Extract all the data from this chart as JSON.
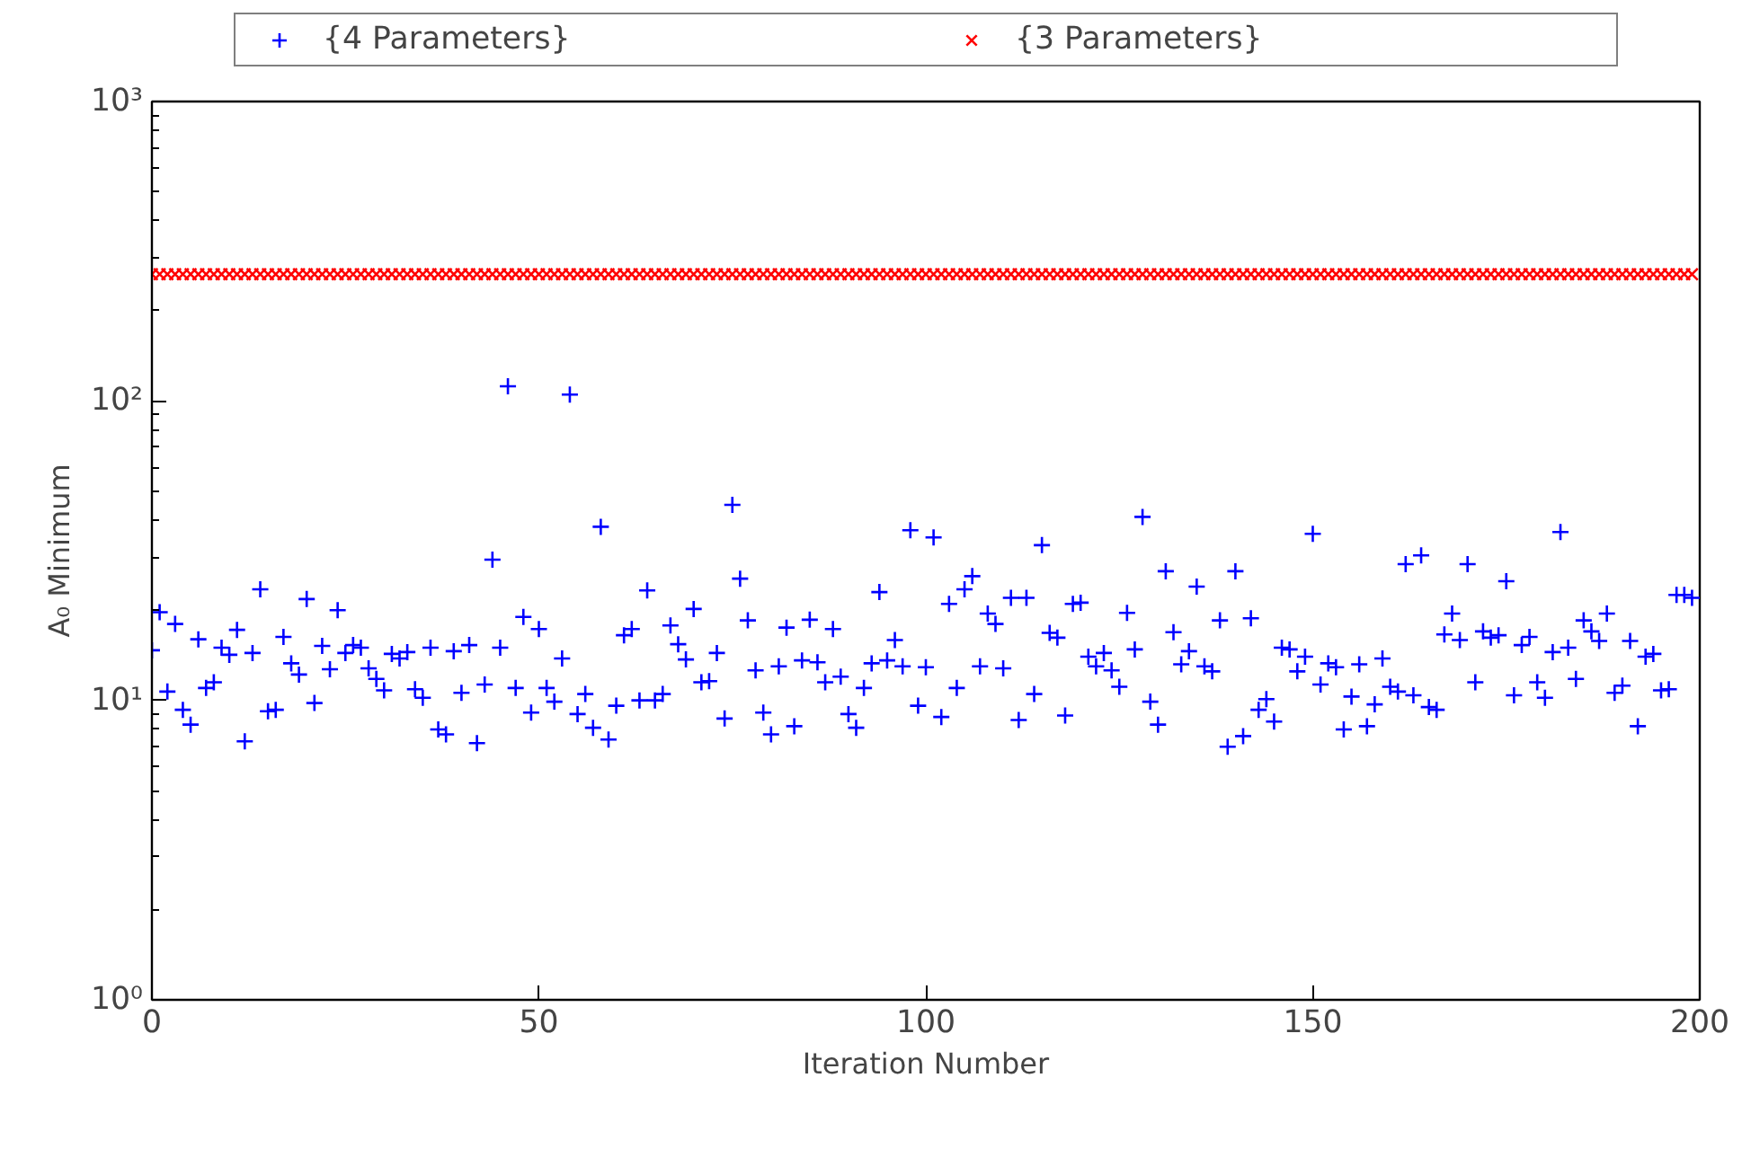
{
  "chart_data": {
    "type": "scatter",
    "xlabel": "Iteration Number",
    "ylabel": "A₀ Minimum",
    "x": [
      0,
      1,
      2,
      3,
      4,
      5,
      6,
      7,
      8,
      9,
      10,
      11,
      12,
      13,
      14,
      15,
      16,
      17,
      18,
      19,
      20,
      21,
      22,
      23,
      24,
      25,
      26,
      27,
      28,
      29,
      30,
      31,
      32,
      33,
      34,
      35,
      36,
      37,
      38,
      39,
      40,
      41,
      42,
      43,
      44,
      45,
      46,
      47,
      48,
      49,
      50,
      51,
      52,
      53,
      54,
      55,
      56,
      57,
      58,
      59,
      60,
      61,
      62,
      63,
      64,
      65,
      66,
      67,
      68,
      69,
      70,
      71,
      72,
      73,
      74,
      75,
      76,
      77,
      78,
      79,
      80,
      81,
      82,
      83,
      84,
      85,
      86,
      87,
      88,
      89,
      90,
      91,
      92,
      93,
      94,
      95,
      96,
      97,
      98,
      99,
      100,
      101,
      102,
      103,
      104,
      105,
      106,
      107,
      108,
      109,
      110,
      111,
      112,
      113,
      114,
      115,
      116,
      117,
      118,
      119,
      120,
      121,
      122,
      123,
      124,
      125,
      126,
      127,
      128,
      129,
      130,
      131,
      132,
      133,
      134,
      135,
      136,
      137,
      138,
      139,
      140,
      141,
      142,
      143,
      144,
      145,
      146,
      147,
      148,
      149,
      150,
      151,
      152,
      153,
      154,
      155,
      156,
      157,
      158,
      159,
      160,
      161,
      162,
      163,
      164,
      165,
      166,
      167,
      168,
      169,
      170,
      171,
      172,
      173,
      174,
      175,
      176,
      177,
      178,
      179,
      180,
      181,
      182,
      183,
      184,
      185,
      186,
      187,
      188,
      189,
      190,
      191,
      192,
      193,
      194,
      195,
      196,
      197,
      198,
      199
    ],
    "series": [
      {
        "name": "{4 Parameters}",
        "color": "#0000ff",
        "marker": "cross",
        "values": [
          14.7,
          19.7,
          10.7,
          18,
          9.3,
          8.3,
          16,
          11,
          11.5,
          15,
          14.2,
          17.2,
          7.3,
          14.4,
          23.5,
          9.2,
          9.3,
          16.3,
          13.3,
          12.2,
          21.8,
          9.8,
          15.2,
          12.7,
          20,
          14.4,
          15.3,
          15,
          12.8,
          11.8,
          10.8,
          14.3,
          13.8,
          14.5,
          10.9,
          10.2,
          15,
          8,
          7.7,
          14.6,
          10.6,
          15.3,
          7.2,
          11.3,
          29.5,
          15,
          112,
          11,
          19,
          9.1,
          17.3,
          11,
          9.9,
          13.8,
          105,
          9,
          10.5,
          8.1,
          38,
          7.4,
          9.6,
          16.5,
          17.3,
          10,
          23.3,
          10,
          10.5,
          17.8,
          15.4,
          13.7,
          20.2,
          11.5,
          11.6,
          14.4,
          8.7,
          45,
          25.5,
          18.5,
          12.6,
          9.1,
          7.7,
          13,
          17.5,
          8.2,
          13.6,
          18.6,
          13.4,
          11.5,
          17.3,
          12,
          9,
          8.1,
          11,
          13.3,
          23,
          13.6,
          15.9,
          13,
          37,
          9.6,
          12.9,
          35,
          8.8,
          21,
          11,
          23.5,
          26,
          13,
          19.5,
          18,
          12.8,
          22,
          8.6,
          22,
          10.5,
          33,
          16.8,
          16.2,
          8.9,
          21,
          21.2,
          14,
          13,
          14.4,
          12.6,
          11.1,
          19.6,
          14.8,
          41,
          9.9,
          8.3,
          27,
          16.9,
          13.2,
          14.6,
          24,
          13,
          12.5,
          18.5,
          7,
          27,
          7.6,
          18.8,
          9.3,
          10.1,
          8.5,
          15,
          14.8,
          12.5,
          14,
          36,
          11.3,
          13.3,
          12.9,
          8,
          10.3,
          13.2,
          8.2,
          9.7,
          13.8,
          11.1,
          10.7,
          28.5,
          10.4,
          30.5,
          9.5,
          9.3,
          16.6,
          19.5,
          15.9,
          28.5,
          11.5,
          17,
          16.2,
          16.5,
          25,
          10.4,
          15.3,
          16.3,
          11.5,
          10.2,
          14.5,
          36.5,
          15,
          11.8,
          18.5,
          17,
          15.8,
          19.5,
          10.6,
          11.2,
          15.8,
          8.2,
          14,
          14.3,
          10.8,
          10.9,
          22.5,
          22.5,
          22
        ]
      },
      {
        "name": "{3 Parameters}",
        "color": "#ff0000",
        "marker": "x",
        "values": [
          265,
          265,
          265,
          265,
          265,
          265,
          265,
          265,
          265,
          265,
          265,
          265,
          265,
          265,
          265,
          265,
          265,
          265,
          265,
          265,
          265,
          265,
          265,
          265,
          265,
          265,
          265,
          265,
          265,
          265,
          265,
          265,
          265,
          265,
          265,
          265,
          265,
          265,
          265,
          265,
          265,
          265,
          265,
          265,
          265,
          265,
          265,
          265,
          265,
          265,
          265,
          265,
          265,
          265,
          265,
          265,
          265,
          265,
          265,
          265,
          265,
          265,
          265,
          265,
          265,
          265,
          265,
          265,
          265,
          265,
          265,
          265,
          265,
          265,
          265,
          265,
          265,
          265,
          265,
          265,
          265,
          265,
          265,
          265,
          265,
          265,
          265,
          265,
          265,
          265,
          265,
          265,
          265,
          265,
          265,
          265,
          265,
          265,
          265,
          265,
          265,
          265,
          265,
          265,
          265,
          265,
          265,
          265,
          265,
          265,
          265,
          265,
          265,
          265,
          265,
          265,
          265,
          265,
          265,
          265,
          265,
          265,
          265,
          265,
          265,
          265,
          265,
          265,
          265,
          265,
          265,
          265,
          265,
          265,
          265,
          265,
          265,
          265,
          265,
          265,
          265,
          265,
          265,
          265,
          265,
          265,
          265,
          265,
          265,
          265,
          265,
          265,
          265,
          265,
          265,
          265,
          265,
          265,
          265,
          265,
          265,
          265,
          265,
          265,
          265,
          265,
          265,
          265,
          265,
          265,
          265,
          265,
          265,
          265,
          265,
          265,
          265,
          265,
          265,
          265,
          265,
          265,
          265,
          265,
          265,
          265,
          265,
          265,
          265,
          265,
          265,
          265,
          265,
          265,
          265,
          265,
          265,
          265,
          265,
          265
        ]
      }
    ],
    "xlim": [
      0,
      200
    ],
    "xticks": [
      0,
      50,
      100,
      150,
      200
    ],
    "log": true,
    "ylim": [
      1,
      1000
    ],
    "yticks": [
      {
        "value": 1,
        "label": "10⁰"
      },
      {
        "value": 10,
        "label": "10¹"
      },
      {
        "value": 100,
        "label": "10²"
      },
      {
        "value": 1000,
        "label": "10³"
      }
    ],
    "grid": false,
    "legend": "top"
  }
}
